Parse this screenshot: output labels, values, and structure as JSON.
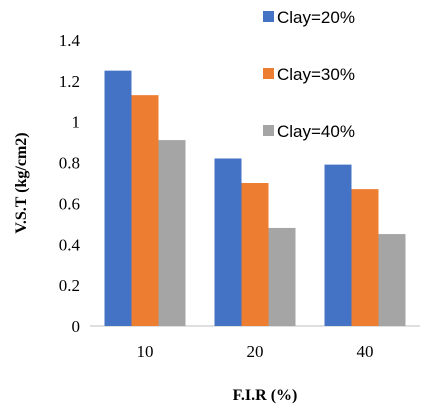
{
  "chart_data": {
    "type": "bar",
    "categories": [
      "10",
      "20",
      "40"
    ],
    "series": [
      {
        "name": "Clay=20%",
        "values": [
          1.25,
          0.82,
          0.79
        ],
        "color": "#4472C4"
      },
      {
        "name": "Clay=30%",
        "values": [
          1.13,
          0.7,
          0.67
        ],
        "color": "#ED7D31"
      },
      {
        "name": "Clay=40%",
        "values": [
          0.91,
          0.48,
          0.45
        ],
        "color": "#A5A5A5"
      }
    ],
    "title": "",
    "xlabel": "F.I.R (%)",
    "ylabel": "V.S.T (kg/cm2)",
    "ylim": [
      0,
      1.4
    ],
    "yticks": [
      0,
      0.2,
      0.4,
      0.6,
      0.8,
      1,
      1.2,
      1.4
    ],
    "grid": false,
    "legend_position": "top-right"
  }
}
